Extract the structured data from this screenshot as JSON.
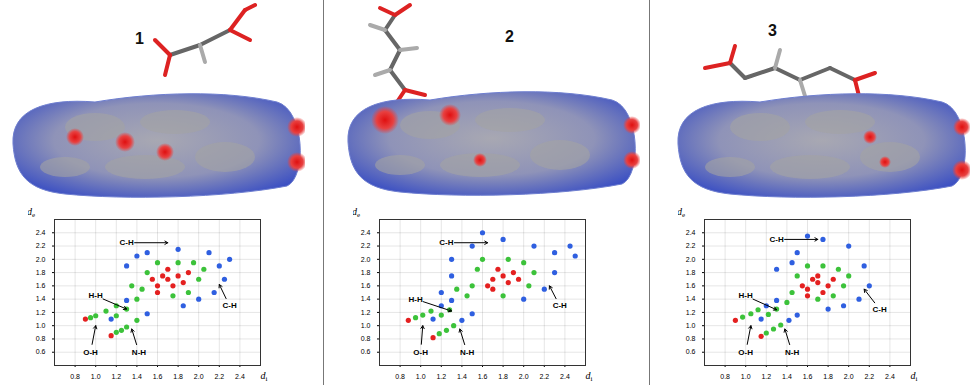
{
  "chart_data": [
    {
      "type": "scatter",
      "title": "1",
      "x_label": "di",
      "y_label": "de",
      "xlim": [
        0.6,
        2.6
      ],
      "ylim": [
        0.4,
        2.6
      ],
      "xticks": [
        0.8,
        {
          "value": 1,
          "label": "1.0"
        },
        1.2,
        1.4,
        1.6,
        1.8,
        {
          "value": 2,
          "label": "2.0"
        },
        2.2,
        2.4
      ],
      "yticks": [
        0.6,
        0.8,
        {
          "value": 1,
          "label": "1.0"
        },
        1.2,
        1.4,
        1.6,
        1.8,
        {
          "value": 2,
          "label": "2.0"
        },
        2.2,
        2.4
      ],
      "grid": true,
      "x": [
        1.3,
        1.5,
        1.8,
        2.1,
        2.2,
        2.25,
        2.15,
        2.0,
        1.85,
        2.3,
        1.4,
        1.45,
        1.5,
        1.95,
        2.0,
        1.8,
        1.6,
        1.4,
        2.05,
        1.75,
        1.9,
        1.35,
        1.6,
        1.7,
        1.8,
        1.65,
        1.75,
        1.85,
        1.7,
        1.55,
        1.9,
        1.6,
        0.9,
        0.95,
        1.0,
        1.1,
        1.2,
        1.3,
        1.15,
        1.2,
        1.25,
        1.3,
        1.4,
        1.5,
        1.15,
        1.2,
        1.3
      ],
      "y": [
        1.9,
        2.1,
        2.15,
        2.1,
        1.9,
        1.7,
        1.5,
        1.4,
        1.3,
        2.0,
        2.05,
        1.55,
        1.8,
        1.95,
        1.7,
        1.95,
        1.95,
        1.4,
        1.85,
        1.45,
        1.5,
        1.6,
        1.6,
        1.7,
        1.75,
        1.75,
        1.6,
        1.65,
        1.85,
        1.7,
        1.8,
        1.5,
        1.1,
        1.12,
        1.15,
        1.22,
        1.3,
        1.38,
        0.85,
        0.9,
        0.93,
        0.98,
        1.08,
        1.18,
        1.1,
        1.15,
        1.25
      ],
      "density": [
        1,
        1,
        1,
        1,
        1,
        1,
        1,
        1,
        1,
        1,
        1,
        2,
        2,
        2,
        2,
        2,
        2,
        2,
        2,
        2,
        2,
        2,
        3,
        3,
        3,
        3,
        3,
        3,
        3,
        3,
        3,
        3,
        3,
        2,
        2,
        2,
        2,
        1,
        3,
        2,
        2,
        2,
        2,
        1,
        1,
        2,
        2
      ],
      "annotations": [
        {
          "text": "C-H",
          "x": 1.7,
          "y": 2.25,
          "text_x": 1.3,
          "text_y": 2.25
        },
        {
          "text": "H-H",
          "x": 1.3,
          "y": 1.25,
          "text_x": 1.0,
          "text_y": 1.45
        },
        {
          "text": "O-H",
          "x": 1.0,
          "y": 1.0,
          "text_x": 0.95,
          "text_y": 0.6
        },
        {
          "text": "N-H",
          "x": 1.35,
          "y": 0.95,
          "text_x": 1.42,
          "text_y": 0.6
        },
        {
          "text": "C-H",
          "x": 2.2,
          "y": 1.62,
          "text_x": 2.3,
          "text_y": 1.3
        }
      ]
    },
    {
      "type": "scatter",
      "title": "2",
      "x_label": "di",
      "y_label": "de",
      "xlim": [
        0.6,
        2.6
      ],
      "ylim": [
        0.4,
        2.6
      ],
      "xticks": [
        0.8,
        {
          "value": 1,
          "label": "1.0"
        },
        1.2,
        1.4,
        1.6,
        1.8,
        {
          "value": 2,
          "label": "2.0"
        },
        2.2,
        2.4
      ],
      "yticks": [
        0.6,
        0.8,
        {
          "value": 1,
          "label": "1.0"
        },
        1.2,
        1.4,
        1.6,
        1.8,
        {
          "value": 2,
          "label": "2.0"
        },
        2.2,
        2.4
      ],
      "grid": true,
      "x": [
        1.3,
        1.5,
        1.8,
        2.1,
        2.3,
        2.45,
        2.5,
        2.3,
        2.2,
        2.0,
        1.3,
        1.6,
        1.2,
        1.5,
        1.55,
        2.0,
        2.05,
        1.85,
        1.6,
        1.45,
        2.1,
        1.8,
        1.35,
        1.7,
        1.8,
        1.9,
        1.75,
        1.85,
        1.65,
        1.95,
        1.7,
        0.88,
        0.95,
        1.02,
        1.1,
        1.2,
        1.3,
        1.12,
        1.18,
        1.25,
        1.32,
        1.4,
        1.5,
        1.12,
        1.2,
        1.28
      ],
      "y": [
        2.0,
        2.2,
        2.3,
        2.2,
        2.1,
        2.2,
        2.05,
        1.8,
        1.55,
        1.4,
        1.75,
        2.4,
        1.5,
        1.6,
        1.85,
        1.95,
        1.6,
        2.0,
        2.0,
        1.45,
        1.8,
        1.45,
        1.55,
        1.7,
        1.75,
        1.8,
        1.85,
        1.65,
        1.6,
        1.7,
        1.55,
        1.08,
        1.12,
        1.16,
        1.22,
        1.3,
        1.38,
        0.82,
        0.88,
        0.93,
        1.0,
        1.08,
        1.18,
        1.1,
        1.16,
        1.24
      ],
      "density": [
        1,
        1,
        1,
        1,
        1,
        1,
        1,
        1,
        1,
        1,
        1,
        1,
        1,
        2,
        2,
        2,
        2,
        2,
        2,
        2,
        2,
        2,
        2,
        3,
        3,
        3,
        3,
        3,
        3,
        3,
        3,
        3,
        2,
        2,
        2,
        1,
        1,
        3,
        2,
        2,
        2,
        1,
        1,
        1,
        2,
        2
      ],
      "annotations": [
        {
          "text": "C-H",
          "x": 1.65,
          "y": 2.25,
          "text_x": 1.25,
          "text_y": 2.25
        },
        {
          "text": "H-H",
          "x": 1.3,
          "y": 1.22,
          "text_x": 0.95,
          "text_y": 1.4
        },
        {
          "text": "O-H",
          "x": 1.02,
          "y": 1.0,
          "text_x": 1.0,
          "text_y": 0.6
        },
        {
          "text": "N-H",
          "x": 1.38,
          "y": 0.95,
          "text_x": 1.45,
          "text_y": 0.6
        },
        {
          "text": "C-H",
          "x": 2.25,
          "y": 1.6,
          "text_x": 2.35,
          "text_y": 1.3
        }
      ]
    },
    {
      "type": "scatter",
      "title": "3",
      "x_label": "di",
      "y_label": "de",
      "xlim": [
        0.6,
        2.6
      ],
      "ylim": [
        0.4,
        2.6
      ],
      "xticks": [
        0.8,
        {
          "value": 1,
          "label": "1.0"
        },
        1.2,
        1.4,
        1.6,
        1.8,
        {
          "value": 2,
          "label": "2.0"
        },
        2.2,
        2.4
      ],
      "yticks": [
        0.6,
        0.8,
        {
          "value": 1,
          "label": "1.0"
        },
        1.2,
        1.4,
        1.6,
        1.8,
        {
          "value": 2,
          "label": "2.0"
        },
        2.2,
        2.4
      ],
      "grid": true,
      "x": [
        1.3,
        1.5,
        1.75,
        2.0,
        2.15,
        2.2,
        2.1,
        1.95,
        1.8,
        1.45,
        1.6,
        1.45,
        1.5,
        1.9,
        1.95,
        1.75,
        1.6,
        1.4,
        2.0,
        1.7,
        1.85,
        1.6,
        1.7,
        1.8,
        1.65,
        1.75,
        1.85,
        1.55,
        1.7,
        1.6,
        0.9,
        0.97,
        1.05,
        1.12,
        1.2,
        1.3,
        1.15,
        1.2,
        1.27,
        1.34,
        1.42,
        1.5,
        1.15,
        1.22,
        1.3
      ],
      "y": [
        1.85,
        2.1,
        2.3,
        2.2,
        1.9,
        1.6,
        1.4,
        1.3,
        1.25,
        1.95,
        2.35,
        1.5,
        1.75,
        1.85,
        1.6,
        1.9,
        1.9,
        1.35,
        1.75,
        1.4,
        1.45,
        1.55,
        1.65,
        1.6,
        1.7,
        1.5,
        1.7,
        1.6,
        1.75,
        1.45,
        1.08,
        1.13,
        1.18,
        1.24,
        1.3,
        1.38,
        0.84,
        0.89,
        0.95,
        1.01,
        1.08,
        1.16,
        1.1,
        1.17,
        1.25
      ],
      "density": [
        1,
        1,
        1,
        1,
        1,
        1,
        1,
        1,
        1,
        1,
        1,
        2,
        2,
        2,
        2,
        2,
        2,
        2,
        2,
        2,
        2,
        3,
        3,
        3,
        3,
        3,
        3,
        3,
        3,
        3,
        3,
        2,
        2,
        2,
        1,
        1,
        3,
        2,
        2,
        2,
        1,
        1,
        1,
        2,
        2
      ],
      "annotations": [
        {
          "text": "C-H",
          "x": 1.7,
          "y": 2.3,
          "text_x": 1.3,
          "text_y": 2.3
        },
        {
          "text": "H-H",
          "x": 1.3,
          "y": 1.24,
          "text_x": 1.0,
          "text_y": 1.45
        },
        {
          "text": "O-H",
          "x": 1.05,
          "y": 1.0,
          "text_x": 1.0,
          "text_y": 0.6
        },
        {
          "text": "N-H",
          "x": 1.38,
          "y": 0.95,
          "text_x": 1.45,
          "text_y": 0.6
        },
        {
          "text": "C-H",
          "x": 2.15,
          "y": 1.55,
          "text_x": 2.3,
          "text_y": 1.25
        }
      ]
    }
  ]
}
